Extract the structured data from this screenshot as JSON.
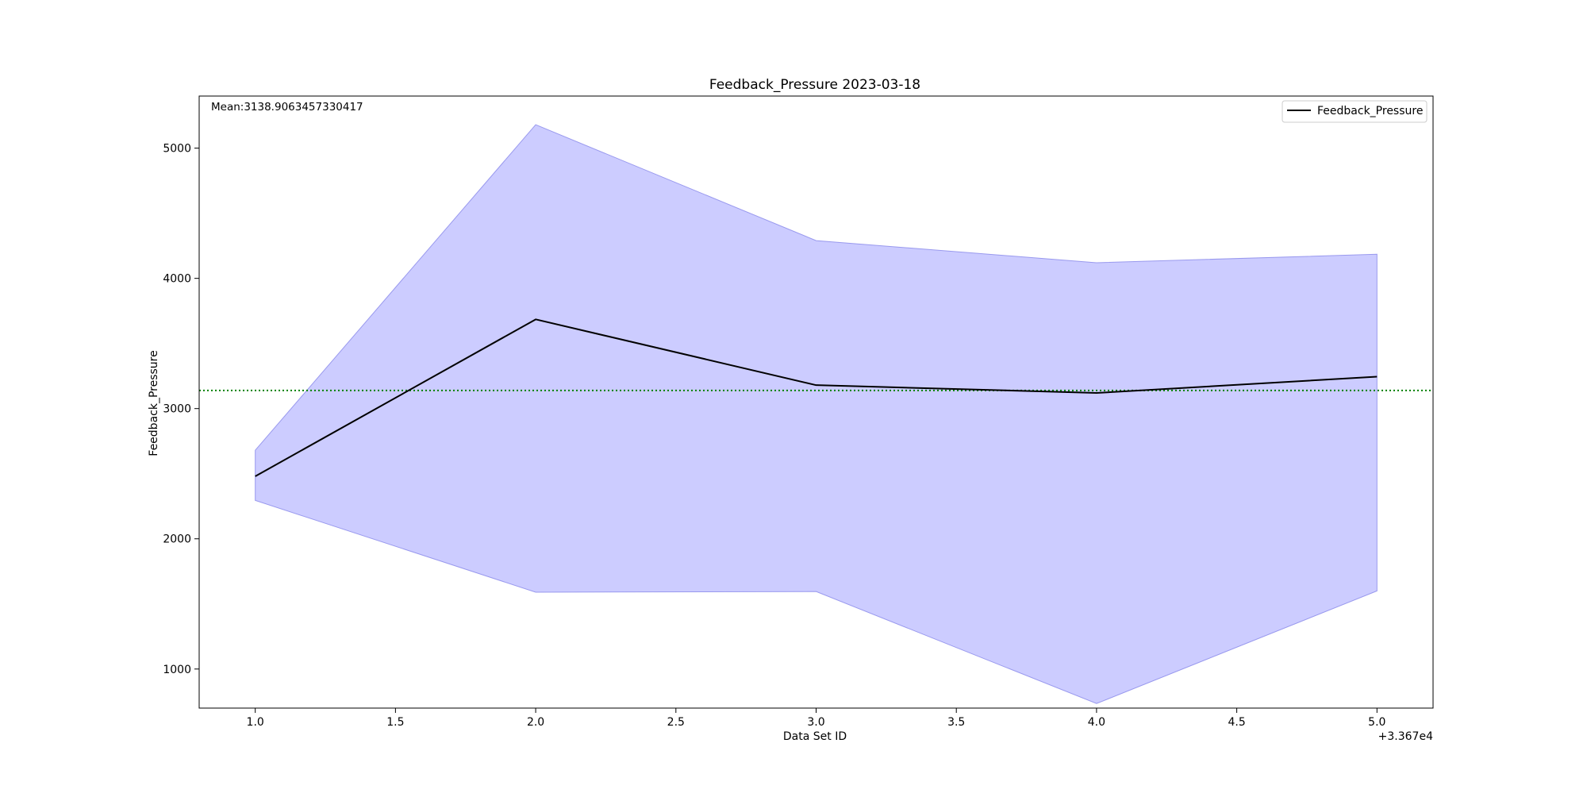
{
  "chart_data": {
    "type": "line",
    "title": "Feedback_Pressure 2023-03-18",
    "xlabel": "Data Set ID",
    "ylabel": "Feedback_Pressure",
    "x_offset_label": "+3.367e4",
    "annotation": "Mean:3138.9063457330417",
    "xlim": [
      0.8,
      5.2
    ],
    "ylim": [
      700,
      5400
    ],
    "x_ticks": [
      1.0,
      1.5,
      2.0,
      2.5,
      3.0,
      3.5,
      4.0,
      4.5,
      5.0
    ],
    "x_tick_labels": [
      "1.0",
      "1.5",
      "2.0",
      "2.5",
      "3.0",
      "3.5",
      "4.0",
      "4.5",
      "5.0"
    ],
    "y_ticks": [
      1000,
      2000,
      3000,
      4000,
      5000
    ],
    "y_tick_labels": [
      "1000",
      "2000",
      "3000",
      "4000",
      "5000"
    ],
    "grid": false,
    "legend_position": "top-right",
    "series": [
      {
        "name": "Feedback_Pressure",
        "x": [
          1,
          2,
          3,
          4,
          5
        ],
        "y": [
          2480,
          3685,
          3180,
          3120,
          3245
        ],
        "color": "#000000"
      }
    ],
    "band": {
      "x": [
        1,
        2,
        3,
        4,
        5
      ],
      "upper": [
        2680,
        5180,
        4290,
        4120,
        4185
      ],
      "lower": [
        2295,
        1590,
        1595,
        735,
        1600
      ],
      "color": "#ccccff",
      "edge_color": "#9999ee"
    },
    "mean_line": {
      "value": 3138.9063457330417,
      "color": "#008000",
      "style": "dotted"
    }
  }
}
